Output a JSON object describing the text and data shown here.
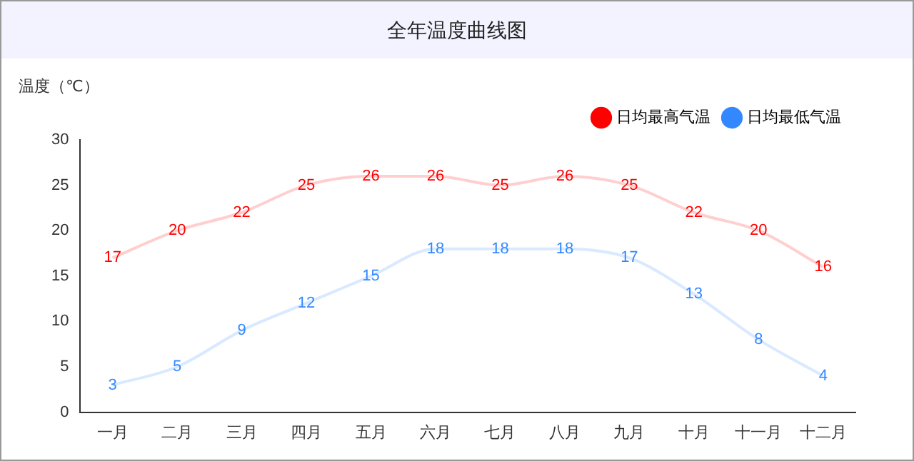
{
  "chart_data": {
    "type": "line",
    "title": "全年温度曲线图",
    "ylabel": "温度（℃）",
    "categories": [
      "一月",
      "二月",
      "三月",
      "四月",
      "五月",
      "六月",
      "七月",
      "八月",
      "九月",
      "十月",
      "十一月",
      "十二月"
    ],
    "series": [
      {
        "name": "日均最高气温",
        "color": "#ff0000",
        "values": [
          17,
          20,
          22,
          25,
          26,
          26,
          25,
          26,
          25,
          22,
          20,
          16
        ]
      },
      {
        "name": "日均最低气温",
        "color": "#3388ff",
        "values": [
          3,
          5,
          9,
          12,
          15,
          18,
          18,
          18,
          17,
          13,
          8,
          4
        ]
      }
    ],
    "ylim": [
      0,
      30
    ],
    "yticks": [
      0,
      5,
      10,
      15,
      20,
      25,
      30
    ],
    "grid": false,
    "legend": "top right",
    "marker": "none",
    "line_style": "solid",
    "data_labels": true
  }
}
